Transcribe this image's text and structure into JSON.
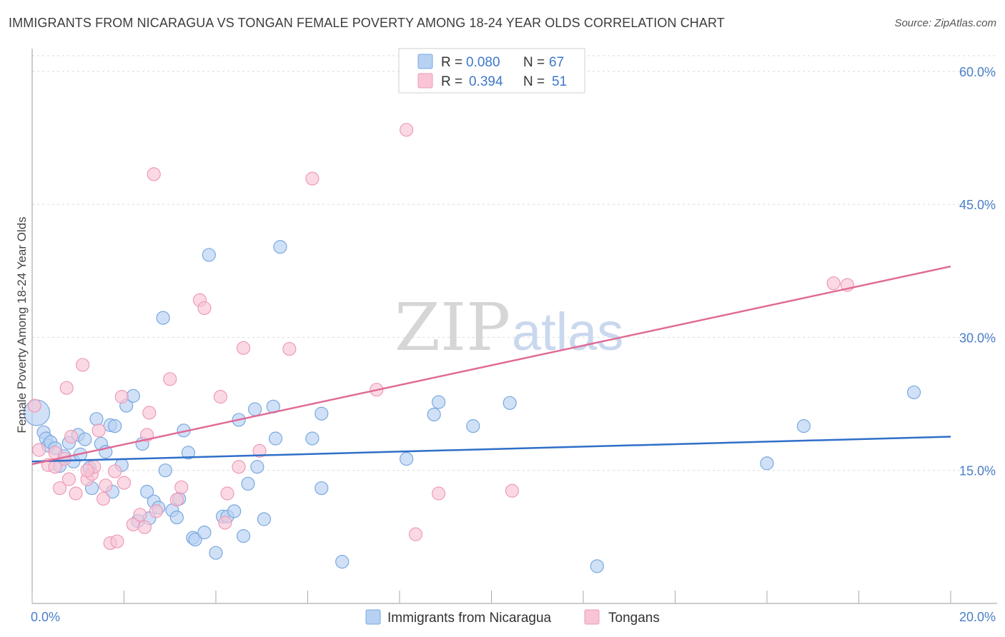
{
  "header": {
    "title": "IMMIGRANTS FROM NICARAGUA VS TONGAN FEMALE POVERTY AMONG 18-24 YEAR OLDS CORRELATION CHART",
    "source": "Source: ZipAtlas.com"
  },
  "watermark": {
    "part1": "ZIP",
    "part2": "atlas"
  },
  "legend": {
    "rows": [
      {
        "r_label": "R =",
        "r_value": "0.080",
        "n_label": "N =",
        "n_value": "67",
        "color": "#aecbf0"
      },
      {
        "r_label": "R =",
        "r_value": "0.394",
        "n_label": "N =",
        "n_value": "51",
        "color": "#f7bcd0"
      }
    ]
  },
  "chart_data": {
    "type": "scatter",
    "title": "IMMIGRANTS FROM NICARAGUA VS TONGAN FEMALE POVERTY AMONG 18-24 YEAR OLDS CORRELATION CHART",
    "xlabel": "",
    "ylabel": "Female Poverty Among 18-24 Year Olds",
    "xlim": [
      0,
      20
    ],
    "ylim": [
      0,
      62
    ],
    "x_tick_labels": [
      {
        "value": 0,
        "label": "0.0%"
      },
      {
        "value": 20,
        "label": "20.0%"
      }
    ],
    "y_tick_labels": [
      {
        "value": 15,
        "label": "15.0%"
      },
      {
        "value": 30,
        "label": "30.0%"
      },
      {
        "value": 45,
        "label": "45.0%"
      },
      {
        "value": 60,
        "label": "60.0%"
      }
    ],
    "grid": true,
    "legend_position": "top-center",
    "series": [
      {
        "name": "Immigrants from Nicaragua",
        "color": "#7aa8e0",
        "fill": "#b7d1f2",
        "line_color": "#2f6fc9",
        "trend": {
          "x": [
            0,
            20
          ],
          "y": [
            16.0,
            18.8
          ]
        },
        "points": [
          [
            0.1,
            21.5
          ],
          [
            0.25,
            19.3
          ],
          [
            0.3,
            18.6
          ],
          [
            0.35,
            17.8
          ],
          [
            0.4,
            18.2
          ],
          [
            0.5,
            17.5
          ],
          [
            0.6,
            15.5
          ],
          [
            0.7,
            16.6
          ],
          [
            0.8,
            18.1
          ],
          [
            0.9,
            16.0
          ],
          [
            1.0,
            19.0
          ],
          [
            1.05,
            16.8
          ],
          [
            1.15,
            18.5
          ],
          [
            1.25,
            15.3
          ],
          [
            1.3,
            13.0
          ],
          [
            1.4,
            20.8
          ],
          [
            1.5,
            18.0
          ],
          [
            1.6,
            17.1
          ],
          [
            1.7,
            20.1
          ],
          [
            1.75,
            12.6
          ],
          [
            1.8,
            20.0
          ],
          [
            1.95,
            15.6
          ],
          [
            2.05,
            22.3
          ],
          [
            2.2,
            23.4
          ],
          [
            2.3,
            9.3
          ],
          [
            2.4,
            18.0
          ],
          [
            2.5,
            12.6
          ],
          [
            2.55,
            9.6
          ],
          [
            2.65,
            11.5
          ],
          [
            2.75,
            10.8
          ],
          [
            2.85,
            32.2
          ],
          [
            2.9,
            15.0
          ],
          [
            3.05,
            10.5
          ],
          [
            3.15,
            9.7
          ],
          [
            3.2,
            11.8
          ],
          [
            3.3,
            19.5
          ],
          [
            3.4,
            17.0
          ],
          [
            3.5,
            7.4
          ],
          [
            3.55,
            7.2
          ],
          [
            3.85,
            39.3
          ],
          [
            3.75,
            8.0
          ],
          [
            4.0,
            5.7
          ],
          [
            4.15,
            9.8
          ],
          [
            4.25,
            9.8
          ],
          [
            4.4,
            10.4
          ],
          [
            4.5,
            20.7
          ],
          [
            4.6,
            7.6
          ],
          [
            4.7,
            13.5
          ],
          [
            4.85,
            21.9
          ],
          [
            4.9,
            15.4
          ],
          [
            5.05,
            9.5
          ],
          [
            5.25,
            22.2
          ],
          [
            5.3,
            18.6
          ],
          [
            5.4,
            40.2
          ],
          [
            6.1,
            18.6
          ],
          [
            6.3,
            21.4
          ],
          [
            6.3,
            13.0
          ],
          [
            6.75,
            4.7
          ],
          [
            8.15,
            16.3
          ],
          [
            8.75,
            21.3
          ],
          [
            8.85,
            22.7
          ],
          [
            9.6,
            20.0
          ],
          [
            10.4,
            22.6
          ],
          [
            12.3,
            4.2
          ],
          [
            16.0,
            15.8
          ],
          [
            16.8,
            20.0
          ],
          [
            19.2,
            23.8
          ]
        ],
        "sizes_note": "one large point near x=0.1",
        "large_points": [
          [
            0.1,
            21.5
          ]
        ]
      },
      {
        "name": "Tongans",
        "color": "#ee9ab8",
        "fill": "#f8c4d6",
        "line_color": "#e06a96",
        "trend": {
          "x": [
            0,
            20
          ],
          "y": [
            15.7,
            38.0
          ]
        },
        "points": [
          [
            0.05,
            22.3
          ],
          [
            0.15,
            17.3
          ],
          [
            0.35,
            15.6
          ],
          [
            0.5,
            17.0
          ],
          [
            0.6,
            13.0
          ],
          [
            0.7,
            16.3
          ],
          [
            0.75,
            24.3
          ],
          [
            0.8,
            14.0
          ],
          [
            0.85,
            18.8
          ],
          [
            0.95,
            12.4
          ],
          [
            1.1,
            26.9
          ],
          [
            1.2,
            14.0
          ],
          [
            1.3,
            14.6
          ],
          [
            1.35,
            15.4
          ],
          [
            1.45,
            19.5
          ],
          [
            1.55,
            11.8
          ],
          [
            1.6,
            13.3
          ],
          [
            1.7,
            6.8
          ],
          [
            1.8,
            14.9
          ],
          [
            1.85,
            7.0
          ],
          [
            1.95,
            23.3
          ],
          [
            2.0,
            13.6
          ],
          [
            2.2,
            8.9
          ],
          [
            2.35,
            10.0
          ],
          [
            2.45,
            8.6
          ],
          [
            2.5,
            19.0
          ],
          [
            2.55,
            21.5
          ],
          [
            2.65,
            48.4
          ],
          [
            2.7,
            10.4
          ],
          [
            3.0,
            25.3
          ],
          [
            3.15,
            11.7
          ],
          [
            3.25,
            13.1
          ],
          [
            3.65,
            34.2
          ],
          [
            3.75,
            33.3
          ],
          [
            4.1,
            23.3
          ],
          [
            4.2,
            9.1
          ],
          [
            4.25,
            12.4
          ],
          [
            4.5,
            15.4
          ],
          [
            4.6,
            28.8
          ],
          [
            4.95,
            17.2
          ],
          [
            5.6,
            28.7
          ],
          [
            6.1,
            47.9
          ],
          [
            7.5,
            24.1
          ],
          [
            8.15,
            53.4
          ],
          [
            8.35,
            7.8
          ],
          [
            8.85,
            12.4
          ],
          [
            10.45,
            12.7
          ],
          [
            17.45,
            36.1
          ],
          [
            17.75,
            35.9
          ],
          [
            0.5,
            15.4
          ],
          [
            1.2,
            15.0
          ]
        ]
      }
    ]
  },
  "bottom_legend": [
    {
      "label": "Immigrants from Nicaragua",
      "color": "#b7d1f2",
      "border": "#7aa8e0"
    },
    {
      "label": "Tongans",
      "color": "#f8c4d6",
      "border": "#ee9ab8"
    }
  ]
}
